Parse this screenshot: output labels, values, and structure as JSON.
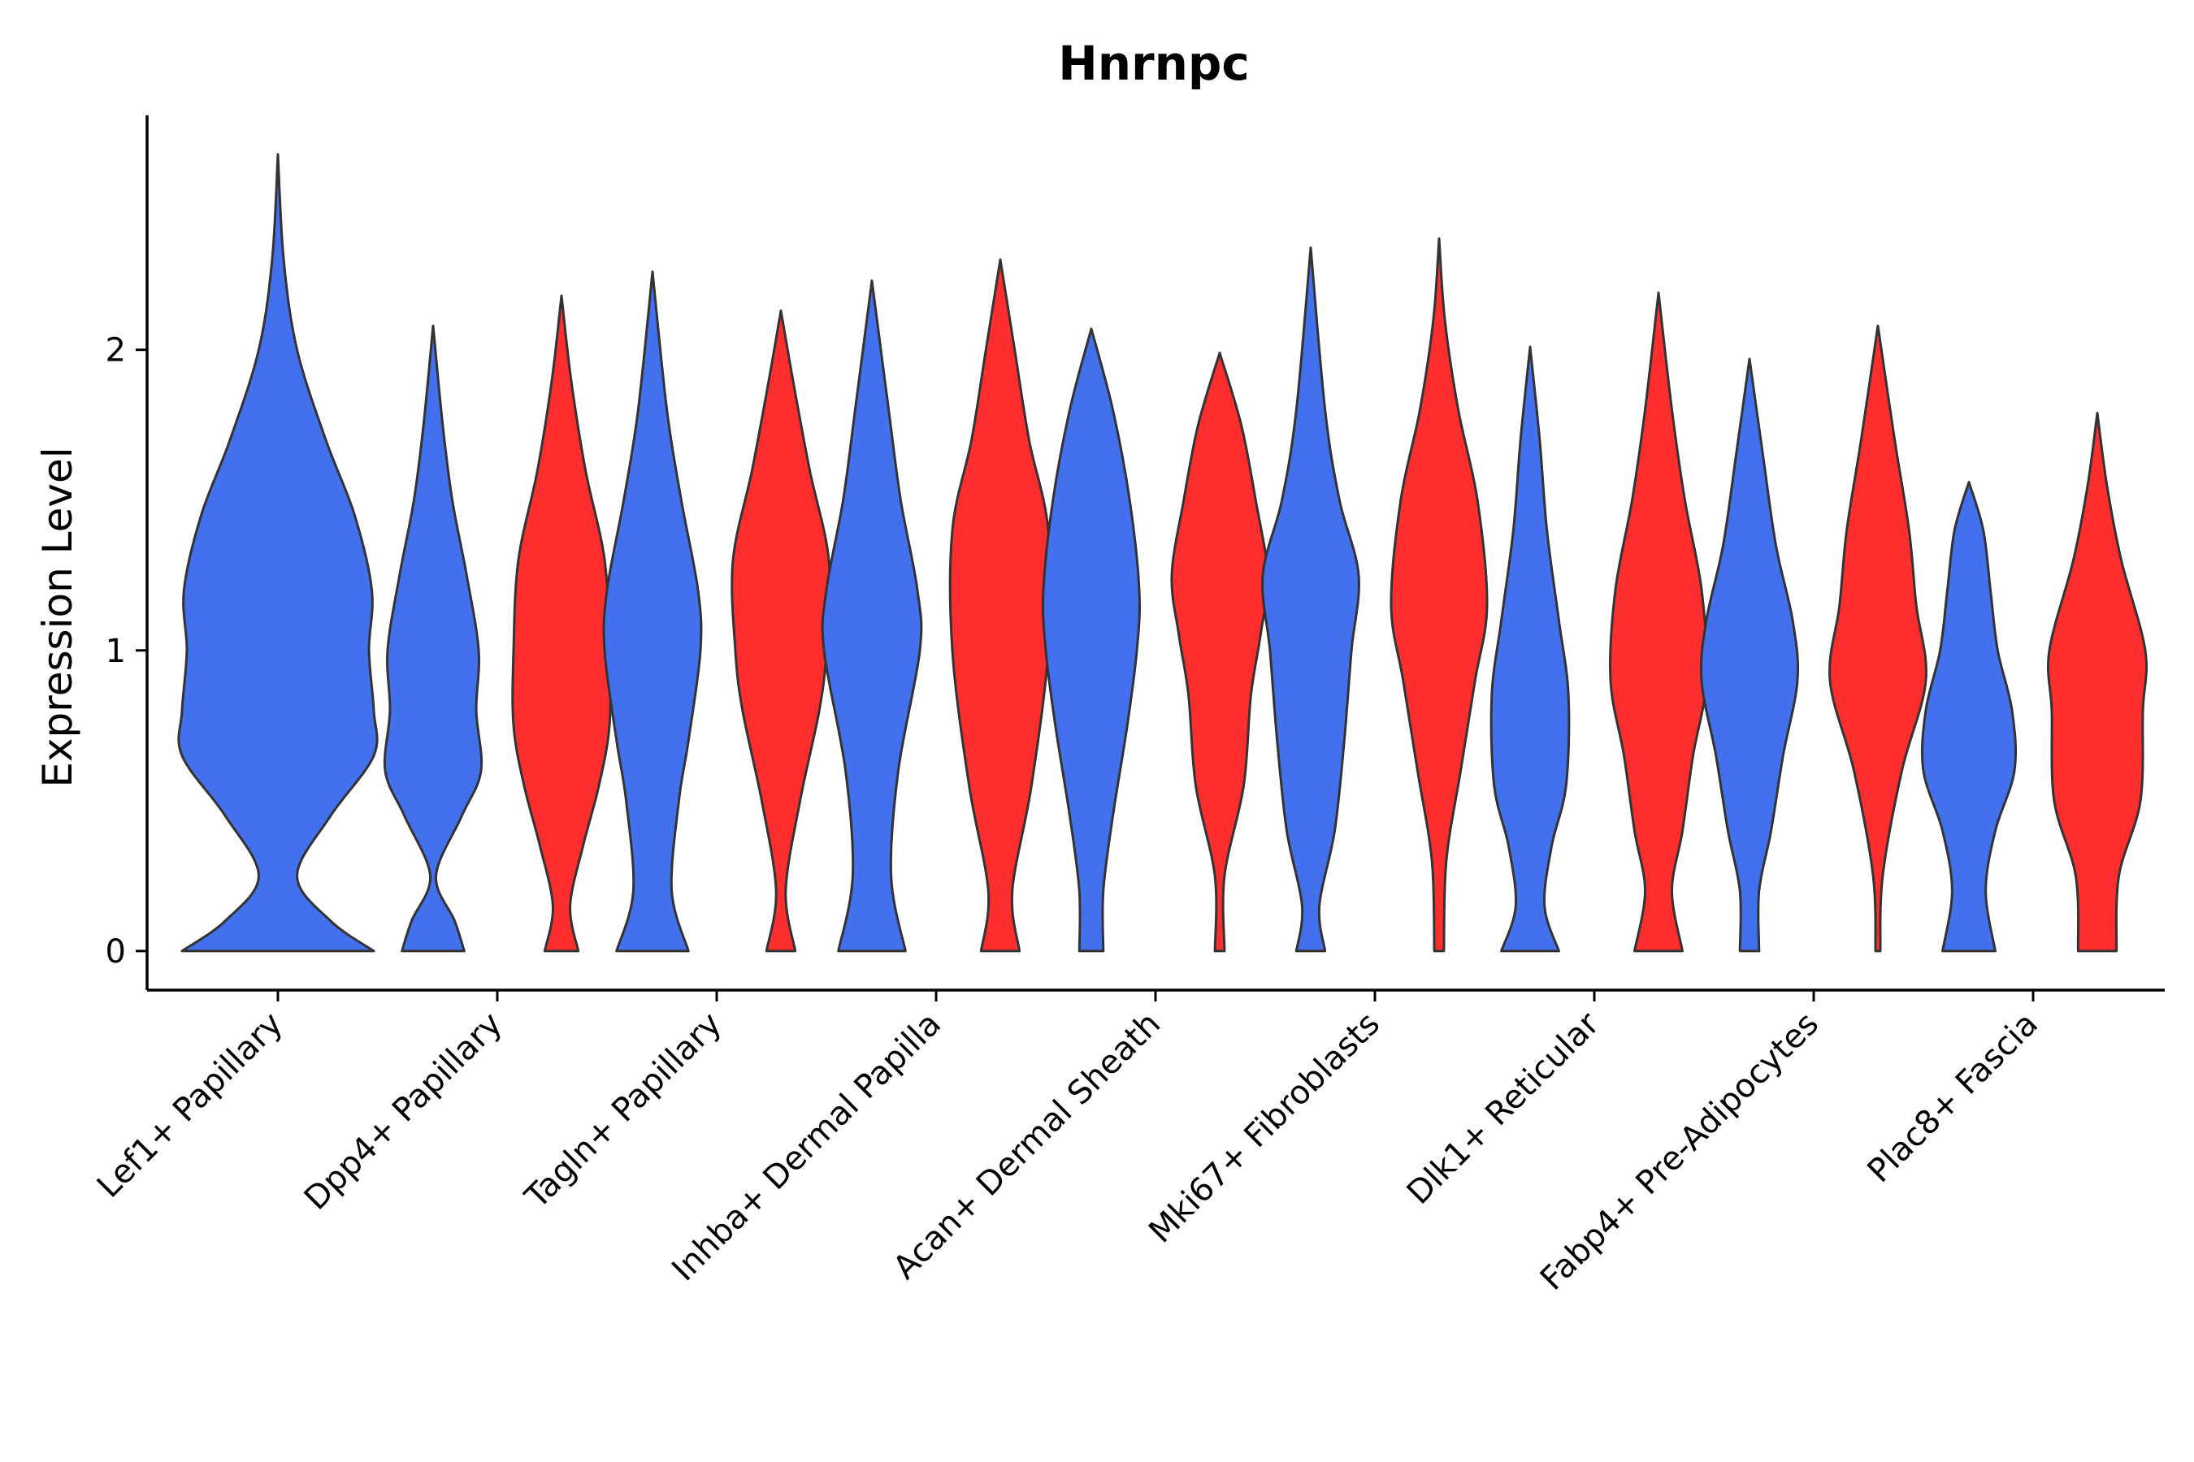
{
  "chart_data": {
    "type": "violin",
    "title": "Hnrnpc",
    "xlabel": "",
    "ylabel": "Expression Level",
    "ylim": [
      -0.13,
      2.78
    ],
    "yticks": [
      0,
      1,
      2
    ],
    "grid": false,
    "legend": "none",
    "series_colors": [
      "#4370EC",
      "#FF2E2E"
    ],
    "categories": [
      "Lef1+ Papillary",
      "Dpp4+ Papillary",
      "Tagln+ Papillary",
      "Inhba+ Dermal Papilla",
      "Acan+ Dermal Sheath",
      "Mki67+ Fibroblasts",
      "Dlk1+ Reticular",
      "Fabp4+ Pre-Adipocytes",
      "Plac8+ Fascia"
    ],
    "violins": [
      {
        "category": 0,
        "group": 0,
        "max": 2.65,
        "width": [
          [
            0.0,
            1.0
          ],
          [
            0.1,
            0.55
          ],
          [
            0.25,
            0.2
          ],
          [
            0.45,
            0.55
          ],
          [
            0.65,
            1.0
          ],
          [
            0.8,
            1.0
          ],
          [
            1.0,
            0.95
          ],
          [
            1.2,
            0.98
          ],
          [
            1.45,
            0.8
          ],
          [
            1.7,
            0.5
          ],
          [
            2.0,
            0.2
          ],
          [
            2.3,
            0.06
          ],
          [
            2.65,
            0.0
          ]
        ]
      },
      {
        "category": 1,
        "group": 0,
        "max": 2.08,
        "width": [
          [
            0.0,
            0.65
          ],
          [
            0.1,
            0.45
          ],
          [
            0.25,
            0.06
          ],
          [
            0.45,
            0.6
          ],
          [
            0.6,
            1.0
          ],
          [
            0.8,
            0.9
          ],
          [
            1.0,
            0.95
          ],
          [
            1.25,
            0.7
          ],
          [
            1.5,
            0.4
          ],
          [
            1.75,
            0.2
          ],
          [
            2.08,
            0.0
          ]
        ]
      },
      {
        "category": 1,
        "group": 1,
        "max": 2.18,
        "width": [
          [
            0.0,
            0.35
          ],
          [
            0.15,
            0.18
          ],
          [
            0.35,
            0.45
          ],
          [
            0.55,
            0.78
          ],
          [
            0.75,
            1.0
          ],
          [
            1.0,
            1.0
          ],
          [
            1.3,
            0.9
          ],
          [
            1.6,
            0.5
          ],
          [
            1.9,
            0.2
          ],
          [
            2.18,
            0.0
          ]
        ]
      },
      {
        "category": 2,
        "group": 0,
        "max": 2.26,
        "width": [
          [
            0.0,
            0.75
          ],
          [
            0.2,
            0.4
          ],
          [
            0.5,
            0.55
          ],
          [
            0.7,
            0.75
          ],
          [
            1.0,
            1.0
          ],
          [
            1.2,
            0.95
          ],
          [
            1.5,
            0.6
          ],
          [
            1.8,
            0.3
          ],
          [
            2.26,
            0.0
          ]
        ]
      },
      {
        "category": 2,
        "group": 1,
        "max": 2.13,
        "width": [
          [
            0.0,
            0.3
          ],
          [
            0.2,
            0.1
          ],
          [
            0.5,
            0.4
          ],
          [
            0.8,
            0.8
          ],
          [
            1.0,
            0.95
          ],
          [
            1.3,
            1.0
          ],
          [
            1.6,
            0.6
          ],
          [
            1.9,
            0.25
          ],
          [
            2.13,
            0.0
          ]
        ]
      },
      {
        "category": 3,
        "group": 0,
        "max": 2.23,
        "width": [
          [
            0.0,
            0.7
          ],
          [
            0.25,
            0.4
          ],
          [
            0.6,
            0.55
          ],
          [
            1.0,
            1.0
          ],
          [
            1.2,
            0.95
          ],
          [
            1.5,
            0.6
          ],
          [
            1.8,
            0.35
          ],
          [
            2.23,
            0.0
          ]
        ]
      },
      {
        "category": 3,
        "group": 1,
        "max": 2.3,
        "width": [
          [
            0.0,
            0.4
          ],
          [
            0.2,
            0.25
          ],
          [
            0.55,
            0.65
          ],
          [
            1.0,
            1.0
          ],
          [
            1.4,
            1.0
          ],
          [
            1.7,
            0.6
          ],
          [
            2.0,
            0.3
          ],
          [
            2.3,
            0.0
          ]
        ]
      },
      {
        "category": 4,
        "group": 0,
        "max": 2.07,
        "width": [
          [
            0.0,
            0.25
          ],
          [
            0.2,
            0.25
          ],
          [
            0.45,
            0.45
          ],
          [
            0.75,
            0.75
          ],
          [
            1.0,
            0.95
          ],
          [
            1.2,
            1.0
          ],
          [
            1.5,
            0.8
          ],
          [
            1.8,
            0.45
          ],
          [
            2.07,
            0.0
          ]
        ]
      },
      {
        "category": 4,
        "group": 1,
        "max": 1.99,
        "width": [
          [
            0.0,
            0.1
          ],
          [
            0.25,
            0.1
          ],
          [
            0.55,
            0.5
          ],
          [
            0.85,
            0.65
          ],
          [
            1.05,
            0.85
          ],
          [
            1.25,
            1.0
          ],
          [
            1.5,
            0.75
          ],
          [
            1.75,
            0.45
          ],
          [
            1.99,
            0.0
          ]
        ]
      },
      {
        "category": 5,
        "group": 0,
        "max": 2.34,
        "width": [
          [
            0.0,
            0.3
          ],
          [
            0.15,
            0.18
          ],
          [
            0.4,
            0.5
          ],
          [
            0.7,
            0.7
          ],
          [
            1.0,
            0.85
          ],
          [
            1.25,
            1.0
          ],
          [
            1.5,
            0.6
          ],
          [
            1.8,
            0.3
          ],
          [
            2.34,
            0.0
          ]
        ]
      },
      {
        "category": 5,
        "group": 1,
        "max": 2.37,
        "width": [
          [
            0.0,
            0.1
          ],
          [
            0.3,
            0.15
          ],
          [
            0.6,
            0.45
          ],
          [
            0.9,
            0.75
          ],
          [
            1.15,
            1.0
          ],
          [
            1.5,
            0.8
          ],
          [
            1.8,
            0.4
          ],
          [
            2.1,
            0.12
          ],
          [
            2.37,
            0.0
          ]
        ]
      },
      {
        "category": 6,
        "group": 0,
        "max": 2.01,
        "width": [
          [
            0.0,
            0.6
          ],
          [
            0.15,
            0.3
          ],
          [
            0.35,
            0.45
          ],
          [
            0.55,
            0.75
          ],
          [
            0.85,
            0.8
          ],
          [
            1.1,
            0.6
          ],
          [
            1.4,
            0.35
          ],
          [
            1.7,
            0.2
          ],
          [
            2.01,
            0.0
          ]
        ]
      },
      {
        "category": 6,
        "group": 1,
        "max": 2.19,
        "width": [
          [
            0.0,
            0.5
          ],
          [
            0.2,
            0.28
          ],
          [
            0.4,
            0.5
          ],
          [
            0.65,
            0.72
          ],
          [
            0.9,
            1.0
          ],
          [
            1.2,
            0.9
          ],
          [
            1.5,
            0.55
          ],
          [
            1.8,
            0.28
          ],
          [
            2.19,
            0.0
          ]
        ]
      },
      {
        "category": 7,
        "group": 0,
        "max": 1.97,
        "width": [
          [
            0.0,
            0.2
          ],
          [
            0.2,
            0.2
          ],
          [
            0.4,
            0.45
          ],
          [
            0.65,
            0.7
          ],
          [
            0.9,
            1.0
          ],
          [
            1.1,
            0.9
          ],
          [
            1.35,
            0.55
          ],
          [
            1.65,
            0.28
          ],
          [
            1.97,
            0.0
          ]
        ]
      },
      {
        "category": 7,
        "group": 1,
        "max": 2.08,
        "width": [
          [
            0.0,
            0.05
          ],
          [
            0.25,
            0.1
          ],
          [
            0.6,
            0.5
          ],
          [
            0.9,
            1.0
          ],
          [
            1.15,
            0.8
          ],
          [
            1.4,
            0.65
          ],
          [
            1.7,
            0.35
          ],
          [
            2.08,
            0.0
          ]
        ]
      },
      {
        "category": 8,
        "group": 0,
        "max": 1.56,
        "width": [
          [
            0.0,
            0.55
          ],
          [
            0.2,
            0.35
          ],
          [
            0.4,
            0.55
          ],
          [
            0.6,
            0.95
          ],
          [
            0.8,
            0.9
          ],
          [
            1.0,
            0.6
          ],
          [
            1.2,
            0.45
          ],
          [
            1.4,
            0.3
          ],
          [
            1.56,
            0.0
          ]
        ]
      },
      {
        "category": 8,
        "group": 1,
        "max": 1.79,
        "width": [
          [
            0.0,
            0.4
          ],
          [
            0.25,
            0.45
          ],
          [
            0.5,
            0.9
          ],
          [
            0.8,
            0.95
          ],
          [
            1.0,
            1.0
          ],
          [
            1.3,
            0.5
          ],
          [
            1.55,
            0.2
          ],
          [
            1.79,
            0.0
          ]
        ]
      }
    ]
  }
}
